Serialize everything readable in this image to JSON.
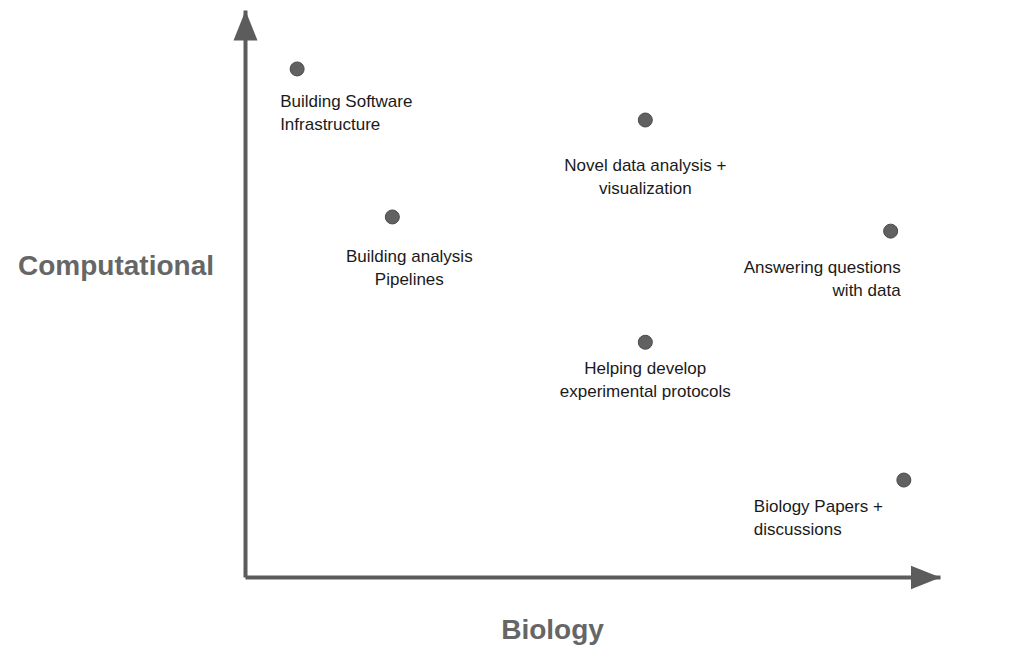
{
  "chart_data": {
    "type": "scatter",
    "x_label": "Biology",
    "y_label": "Computational",
    "x": [
      0.75,
      2.12,
      5.76,
      9.29,
      5.76,
      9.48
    ],
    "values": [
      8.96,
      6.35,
      8.06,
      6.1,
      4.14,
      1.71
    ],
    "labels": [
      [
        "Building Software",
        "Infrastructure"
      ],
      [
        "Building analysis",
        "Pipelines"
      ],
      [
        "Novel data analysis +",
        "visualization"
      ],
      [
        "Answering questions",
        "with data"
      ],
      [
        "Helping develop",
        "experimental protocols"
      ],
      [
        "Biology Papers +",
        "discussions"
      ]
    ],
    "xlim": [
      0,
      10
    ],
    "ylim": [
      0,
      10
    ],
    "tick_labels": false,
    "color": "#616161",
    "marker": "circle"
  }
}
